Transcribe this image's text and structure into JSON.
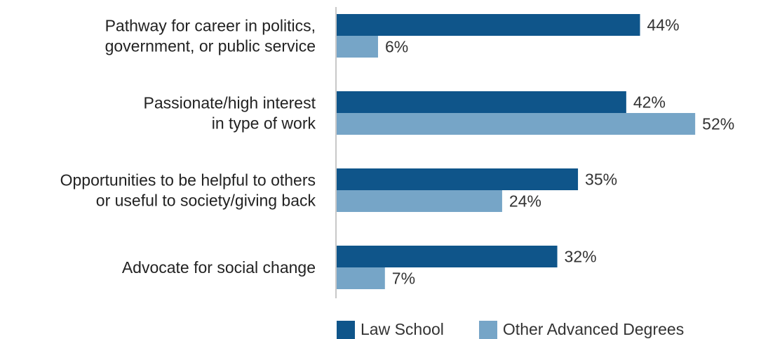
{
  "chart_data": {
    "type": "bar",
    "orientation": "horizontal",
    "categories": [
      [
        "Pathway for career in politics,",
        "government, or public service"
      ],
      [
        "Passionate/high interest",
        "in type of work"
      ],
      [
        "Opportunities to be helpful to others",
        "or useful to society/giving back"
      ],
      [
        "Advocate for social change"
      ]
    ],
    "series": [
      {
        "name": "Law School",
        "color": "#0f558a",
        "values": [
          44,
          42,
          35,
          32
        ]
      },
      {
        "name": "Other Advanced Degrees",
        "color": "#76a5c7",
        "values": [
          6,
          52,
          24,
          7
        ]
      }
    ],
    "value_suffix": "%",
    "xlim": [
      0,
      52
    ],
    "legend_position": "bottom",
    "grid": false
  }
}
